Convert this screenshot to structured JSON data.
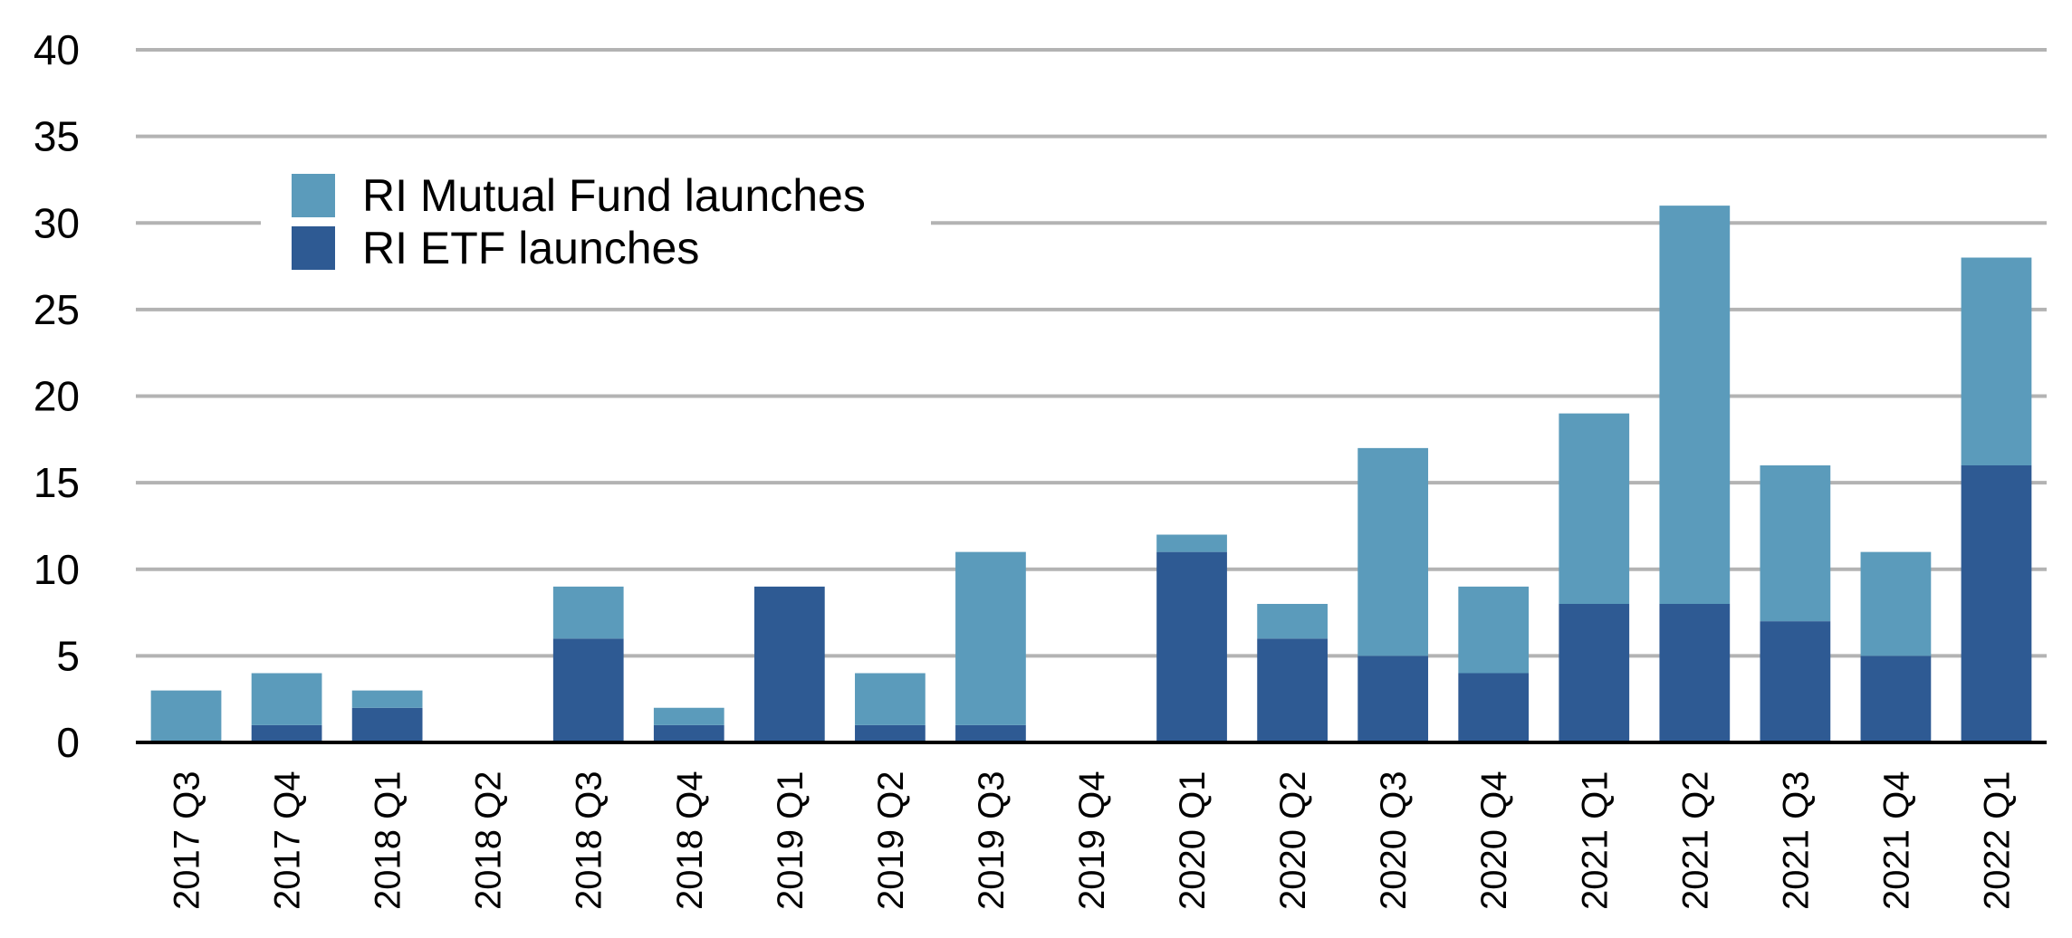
{
  "chart_data": {
    "type": "bar",
    "stacked": true,
    "categories": [
      "2017 Q3",
      "2017 Q4",
      "2018 Q1",
      "2018 Q2",
      "2018 Q3",
      "2018 Q4",
      "2019 Q1",
      "2019 Q2",
      "2019 Q3",
      "2019 Q4",
      "2020 Q1",
      "2020 Q2",
      "2020 Q3",
      "2020 Q4",
      "2021 Q1",
      "2021 Q2",
      "2021 Q3",
      "2021 Q4",
      "2022 Q1"
    ],
    "series": [
      {
        "name": "RI ETF launches",
        "color": "#2e5a93",
        "values": [
          0,
          1,
          2,
          0,
          6,
          1,
          9,
          1,
          1,
          0,
          11,
          6,
          5,
          4,
          8,
          8,
          7,
          5,
          16
        ]
      },
      {
        "name": "RI Mutual Fund launches",
        "color": "#5b9bbb",
        "values": [
          3,
          3,
          1,
          0,
          3,
          1,
          0,
          3,
          10,
          0,
          1,
          2,
          12,
          5,
          11,
          23,
          9,
          6,
          12
        ]
      }
    ],
    "legend_order": [
      "RI Mutual Fund launches",
      "RI ETF launches"
    ],
    "legend_position": "top-left",
    "ylim": [
      0,
      40
    ],
    "yticks": [
      0,
      5,
      10,
      15,
      20,
      25,
      30,
      35,
      40
    ],
    "grid": true,
    "title": "",
    "xlabel": "",
    "ylabel": ""
  }
}
